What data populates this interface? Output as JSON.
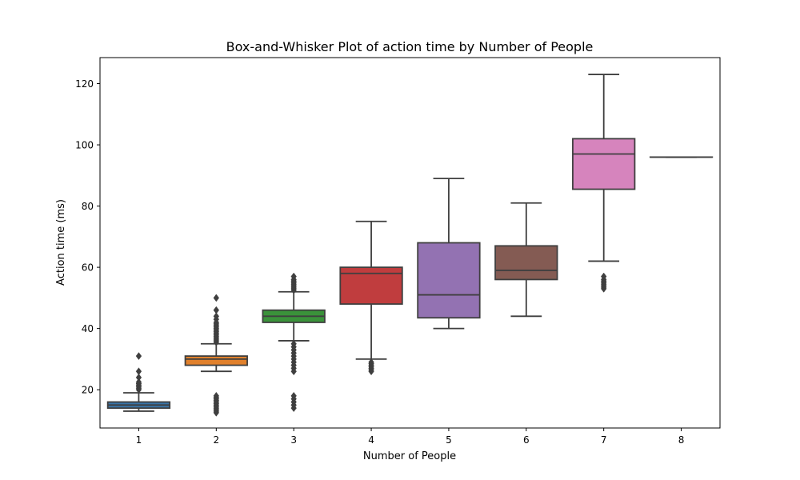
{
  "chart_data": {
    "type": "box",
    "title": "Box-and-Whisker Plot of action time by Number of People",
    "xlabel": "Number of People",
    "ylabel": "Action time (ms)",
    "ylim": [
      7.5,
      128.5
    ],
    "yticks": [
      20,
      40,
      60,
      80,
      100,
      120
    ],
    "grid": false,
    "categories": [
      "1",
      "2",
      "3",
      "4",
      "5",
      "6",
      "7",
      "8"
    ],
    "boxes": [
      {
        "category": "1",
        "color": "#3a75a8",
        "whisker_low": 13,
        "q1": 14,
        "median": 15,
        "q3": 16,
        "whisker_high": 19,
        "outliers": [
          20,
          20.5,
          21,
          21.5,
          22,
          22.5,
          24,
          26,
          31
        ]
      },
      {
        "category": "2",
        "color": "#e1812c",
        "whisker_low": 26,
        "q1": 28,
        "median": 30,
        "q3": 31,
        "whisker_high": 35,
        "outliers": [
          12.5,
          13,
          13.5,
          14,
          14.5,
          15,
          15.5,
          16,
          16.5,
          17,
          17.5,
          18,
          35.5,
          36,
          36.5,
          37,
          37.5,
          38,
          38.5,
          39,
          39.5,
          40,
          40.5,
          41,
          41.5,
          42,
          43,
          44,
          46,
          50
        ]
      },
      {
        "category": "3",
        "color": "#3a923a",
        "whisker_low": 36,
        "q1": 42,
        "median": 44,
        "q3": 46,
        "whisker_high": 52,
        "outliers": [
          14,
          15,
          16,
          17,
          18,
          26,
          27,
          28,
          29,
          30,
          31,
          32,
          33,
          34,
          35,
          52.5,
          53,
          53.5,
          54,
          54.5,
          55,
          55.5,
          56,
          57
        ]
      },
      {
        "category": "4",
        "color": "#c03d3e",
        "whisker_low": 30,
        "q1": 48,
        "median": 58,
        "q3": 60,
        "whisker_high": 75,
        "outliers": [
          26,
          26.5,
          27,
          27.5,
          28,
          28.5,
          29
        ]
      },
      {
        "category": "5",
        "color": "#9372b2",
        "whisker_low": 40,
        "q1": 43.5,
        "median": 51,
        "q3": 68,
        "whisker_high": 89,
        "outliers": []
      },
      {
        "category": "6",
        "color": "#845b53",
        "whisker_low": 44,
        "q1": 56,
        "median": 59,
        "q3": 67,
        "whisker_high": 81,
        "outliers": []
      },
      {
        "category": "7",
        "color": "#d684bd",
        "whisker_low": 62,
        "q1": 85.5,
        "median": 97,
        "q3": 102,
        "whisker_high": 123,
        "outliers": [
          53,
          53.5,
          54,
          54.5,
          55,
          55.5,
          56,
          57
        ]
      },
      {
        "category": "8",
        "color": "#7f7f7f",
        "whisker_low": 96,
        "q1": 96,
        "median": 96,
        "q3": 96,
        "whisker_high": 96,
        "outliers": []
      }
    ]
  }
}
